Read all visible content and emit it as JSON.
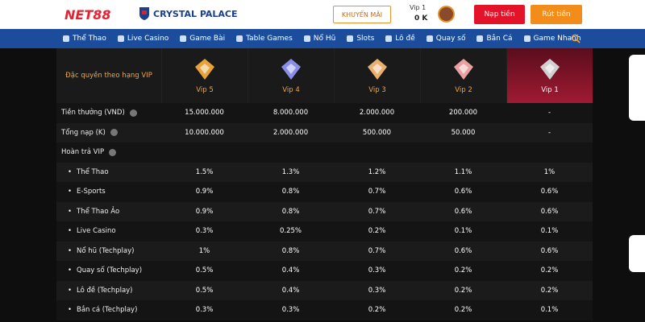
{
  "header": {
    "logo": "NET88",
    "partner": "CRYSTAL PALACE",
    "promo": "KHUYẾN MÃI",
    "vip_level": "Vip 1",
    "balance": "0 K",
    "deposit": "Nạp tiền",
    "withdraw": "Rút tiền"
  },
  "nav": [
    "Thể Thao",
    "Live Casino",
    "Game Bài",
    "Table Games",
    "Nổ Hũ",
    "Slots",
    "Lô đề",
    "Quay số",
    "Bắn Cá",
    "Game Nhanh"
  ],
  "table": {
    "corner": "Đặc quyền theo hạng VIP",
    "tiers": [
      "Vip 5",
      "Vip 4",
      "Vip 3",
      "Vip 2",
      "Vip 1"
    ],
    "rows": [
      {
        "label": "Tiền thưởng (VND)",
        "values": [
          "15.000.000",
          "8.000.000",
          "2.000.000",
          "200.000",
          "-"
        ]
      },
      {
        "label": "Tổng nạp (K)",
        "values": [
          "10.000.000",
          "2.000.000",
          "500.000",
          "50.000",
          "-"
        ]
      },
      {
        "label": "Hoàn trả VIP"
      },
      {
        "label": "Thể Thao",
        "values": [
          "1.5%",
          "1.3%",
          "1.2%",
          "1.1%",
          "1%"
        ]
      },
      {
        "label": "E-Sports",
        "values": [
          "0.9%",
          "0.8%",
          "0.7%",
          "0.6%",
          "0.6%"
        ]
      },
      {
        "label": "Thể Thao Ảo",
        "values": [
          "0.9%",
          "0.8%",
          "0.7%",
          "0.6%",
          "0.6%"
        ]
      },
      {
        "label": "Live Casino",
        "values": [
          "0.3%",
          "0.25%",
          "0.2%",
          "0.1%",
          "0.1%"
        ]
      },
      {
        "label": "Nổ hũ (Techplay)",
        "values": [
          "1%",
          "0.8%",
          "0.7%",
          "0.6%",
          "0.6%"
        ]
      },
      {
        "label": "Quay số (Techplay)",
        "values": [
          "0.5%",
          "0.4%",
          "0.3%",
          "0.2%",
          "0.2%"
        ]
      },
      {
        "label": "Lô đề (Techplay)",
        "values": [
          "0.5%",
          "0.4%",
          "0.3%",
          "0.2%",
          "0.2%"
        ]
      },
      {
        "label": "Bắn cá (Techplay)",
        "values": [
          "0.3%",
          "0.3%",
          "0.2%",
          "0.2%",
          "0.1%"
        ]
      }
    ]
  }
}
